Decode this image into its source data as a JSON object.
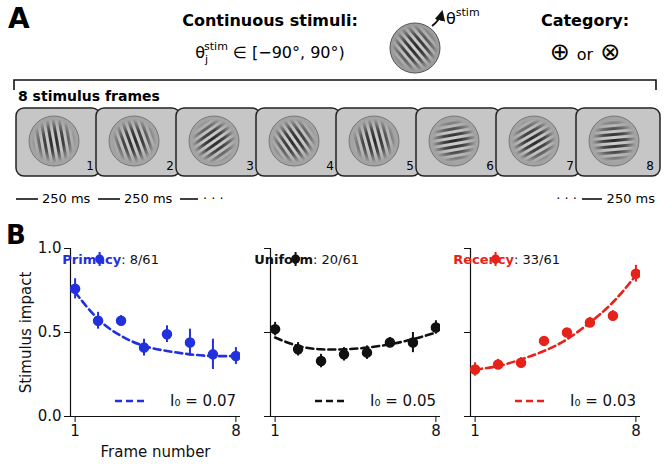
{
  "panel_a": {
    "letter": "A",
    "heading": "Continuous stimuli:",
    "stimulus_range": {
      "symbol": "θ",
      "subscript": "j",
      "superscript": "stim",
      "text": " ∈ [−90°, 90°)"
    },
    "stimulus_symbol": {
      "symbol": "θ",
      "superscript": "stim",
      "orientation_deg": -40
    },
    "category_heading": "Category:",
    "category_options": [
      "⊕",
      "⊗"
    ],
    "category_joiner": "or",
    "sequence_label": "8 stimulus frames",
    "frames": [
      {
        "number": 1,
        "orientation_deg": -10
      },
      {
        "number": 2,
        "orientation_deg": -20
      },
      {
        "number": 3,
        "orientation_deg": 55
      },
      {
        "number": 4,
        "orientation_deg": -35
      },
      {
        "number": 5,
        "orientation_deg": -15
      },
      {
        "number": 6,
        "orientation_deg": 80
      },
      {
        "number": 7,
        "orientation_deg": 60
      },
      {
        "number": 8,
        "orientation_deg": 85
      }
    ],
    "frame_duration": "250 ms",
    "ellipsis": "· · ·"
  },
  "panel_b_letter": "B",
  "chart_data": [
    {
      "type": "scatter",
      "x_label": "Frame number",
      "y_label": "Stimulus impact",
      "x": [
        1,
        2,
        3,
        4,
        5,
        6,
        7,
        8
      ],
      "series": [
        {
          "name": "Primacy: 8/61",
          "type": "scatter",
          "marker": "circle",
          "color": "#2230dd",
          "values": [
            0.76,
            0.57,
            0.57,
            0.41,
            0.49,
            0.44,
            0.37,
            0.36
          ],
          "errors": [
            0.06,
            0.05,
            0.03,
            0.05,
            0.05,
            0.08,
            0.09,
            0.05
          ]
        },
        {
          "name": "I₀ = 0.07",
          "type": "line",
          "line_style": "dashed",
          "color": "#2230dd",
          "values": [
            0.74,
            0.58,
            0.48,
            0.42,
            0.39,
            0.37,
            0.36,
            0.36
          ]
        }
      ],
      "xlim": [
        0.8,
        8.2
      ],
      "xticks": [
        1,
        8
      ],
      "ylim": [
        0,
        1
      ],
      "yticks": [
        {
          "value": 0,
          "label": "0.0"
        },
        {
          "value": 0.5,
          "label": "0.5"
        },
        {
          "value": 1,
          "label": "1.0"
        }
      ],
      "legend": "top"
    },
    {
      "type": "scatter",
      "x": [
        1,
        2,
        3,
        4,
        5,
        6,
        7,
        8
      ],
      "series": [
        {
          "name": "Uniform: 20/61",
          "type": "scatter",
          "marker": "circle",
          "color": "#111111",
          "values": [
            0.52,
            0.4,
            0.33,
            0.37,
            0.38,
            0.44,
            0.44,
            0.53
          ],
          "errors": [
            0.04,
            0.04,
            0.04,
            0.04,
            0.04,
            0.03,
            0.06,
            0.04
          ]
        },
        {
          "name": "I₀ = 0.05",
          "type": "line",
          "line_style": "dashed",
          "color": "#111111",
          "values": [
            0.47,
            0.42,
            0.4,
            0.4,
            0.41,
            0.43,
            0.46,
            0.5
          ]
        }
      ],
      "xlim": [
        0.8,
        8.2
      ],
      "xticks": [
        1,
        8
      ],
      "ylim": [
        0,
        1
      ],
      "yticks": [
        0,
        0.5,
        1
      ],
      "tick_labels": "x",
      "legend": "top"
    },
    {
      "type": "scatter",
      "x": [
        1,
        2,
        3,
        4,
        5,
        6,
        7,
        8
      ],
      "series": [
        {
          "name": "Recency: 33/61",
          "type": "scatter",
          "marker": "circle",
          "color": "#e5231b",
          "values": [
            0.28,
            0.31,
            0.32,
            0.45,
            0.5,
            0.56,
            0.6,
            0.85
          ],
          "errors": [
            0.04,
            0.03,
            0.03,
            0.02,
            0.02,
            0.03,
            0.03,
            0.05
          ]
        },
        {
          "name": "I₀ = 0.03",
          "type": "line",
          "line_style": "dashed",
          "color": "#e5231b",
          "values": [
            0.28,
            0.3,
            0.34,
            0.39,
            0.46,
            0.56,
            0.68,
            0.84
          ]
        }
      ],
      "xlim": [
        0.8,
        8.2
      ],
      "xticks": [
        1,
        8
      ],
      "ylim": [
        0,
        1
      ],
      "yticks": [
        0,
        0.5,
        1
      ],
      "tick_labels": "x",
      "legend": "top"
    }
  ]
}
